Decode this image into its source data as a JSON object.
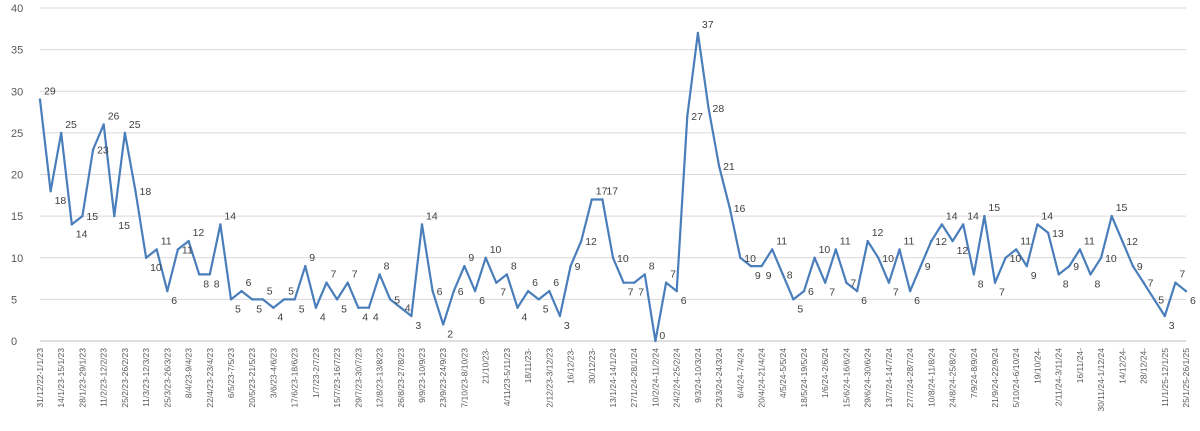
{
  "chart_data": {
    "type": "line",
    "title": "",
    "xlabel": "",
    "ylabel": "",
    "ylim": [
      0,
      40
    ],
    "yticks": [
      0,
      5,
      10,
      15,
      20,
      25,
      30,
      35,
      40
    ],
    "grid": "horizontal",
    "legend": "none",
    "line_color": "#4a7ebb",
    "x_tick_labels": [
      "31/12/22-1/1/23",
      "14/1/23-15/1/23",
      "28/1/23-29/1/23",
      "11/2/23-12/2/23",
      "25/2/23-26/2/23",
      "11/3/23-12/3/23",
      "25/3/23-26/3/23",
      "8/4/23-9/4/23",
      "22/4/23-23/4/23",
      "6/5/23-7/5/23",
      "20/5/23-21/5/23",
      "3/6/23-4/6/23",
      "17/6/23-18/6/23",
      "1/7/23-2/7/23",
      "15/7/23-16/7/23",
      "29/7/23-30/7/23",
      "12/8/23-13/8/23",
      "26/8/23-27/8/23",
      "9/9/23-10/9/23",
      "23/9/23-24/9/23",
      "7/10/23-8/10/23",
      "21/10/23-",
      "4/11/23-5/11/23",
      "18/11/23-",
      "2/12/23-3/12/23",
      "16/12/23-",
      "30/12/23-",
      "13/1/24-14/1/24",
      "27/1/24-28/1/24",
      "10/2/24-11/2/24",
      "24/2/24-25/2/24",
      "9/3/24-10/3/24",
      "23/3/24-24/3/24",
      "6/4/24-7/4/24",
      "20/4/24-21/4/24",
      "4/5/24-5/5/24",
      "18/5/24-19/5/24",
      "1/6/24-2/6/24",
      "15/6/24-16/6/24",
      "29/6/24-30/6/24",
      "13/7/24-14/7/24",
      "27/7/24-28/7/24",
      "10/8/24-11/8/24",
      "24/8/24-25/8/24",
      "7/9/24-8/9/24",
      "21/9/24-22/9/24",
      "5/10/24-6/10/24",
      "19/10/24-",
      "2/11/24-3/11/24",
      "16/11/24-",
      "30/11/24-1/12/24",
      "14/12/24-",
      "28/12/24-",
      "11/1/25-12/1/25",
      "25/1/25-26/1/25"
    ],
    "values": [
      29,
      18,
      25,
      14,
      15,
      23,
      26,
      15,
      25,
      18,
      10,
      11,
      6,
      11,
      12,
      8,
      8,
      14,
      5,
      6,
      5,
      5,
      4,
      5,
      5,
      9,
      4,
      7,
      5,
      7,
      4,
      4,
      8,
      5,
      4,
      3,
      14,
      6,
      2,
      6,
      9,
      6,
      10,
      7,
      8,
      4,
      6,
      5,
      6,
      3,
      9,
      12,
      17,
      17,
      10,
      7,
      7,
      8,
      0,
      7,
      6,
      27,
      37,
      28,
      21,
      16,
      10,
      9,
      9,
      11,
      8,
      5,
      6,
      10,
      7,
      11,
      7,
      6,
      12,
      10,
      7,
      11,
      6,
      9,
      12,
      14,
      12,
      14,
      8,
      15,
      7,
      10,
      11,
      9,
      14,
      13,
      8,
      9,
      11,
      8,
      10,
      15,
      12,
      9,
      7,
      5,
      3,
      7,
      6
    ],
    "labels": [
      "29",
      "18",
      "25",
      "14",
      "15",
      "23",
      "26",
      "15",
      "25",
      "18",
      "10",
      "11",
      "6",
      "11",
      "12",
      "8",
      "8",
      "14",
      "5",
      "6",
      "5",
      "5",
      "4",
      "5",
      "5",
      "9",
      "4",
      "7",
      "5",
      "7",
      "4",
      "4",
      "8",
      "5",
      "4",
      "3",
      "14",
      "6",
      "2",
      "6",
      "9",
      "6",
      "10",
      "7",
      "8",
      "4",
      "6",
      "5",
      "6",
      "3",
      "9",
      "12",
      "17",
      "17",
      "10",
      "7",
      "7",
      "8",
      "0",
      "7",
      "6",
      "27",
      "37",
      "28",
      "21",
      "16",
      "10",
      "9",
      "9",
      "11",
      "8",
      "5",
      "6",
      "10",
      "7",
      "11",
      "7",
      "6",
      "12",
      "10",
      "7",
      "11",
      "6",
      "9",
      "12",
      "14",
      "12",
      "14",
      "8",
      "15",
      "7",
      "10",
      "11",
      "9",
      "14",
      "13",
      "8",
      "9",
      "11",
      "8",
      "10",
      "15",
      "12",
      "9",
      "7",
      "5",
      "3",
      "7",
      "6"
    ]
  }
}
